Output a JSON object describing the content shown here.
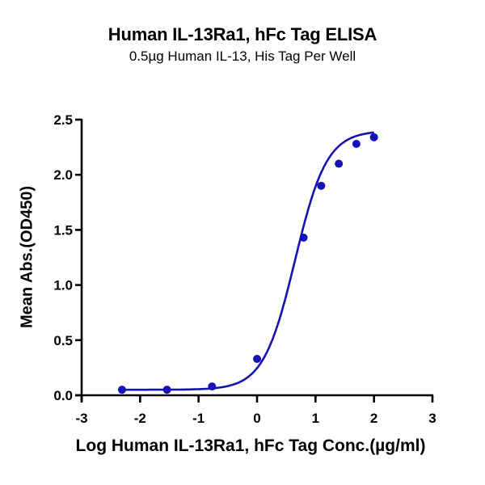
{
  "title": "Human IL-13Ra1, hFc Tag ELISA",
  "subtitle": "0.5µg Human IL-13, His Tag Per Well",
  "colors": {
    "series": "#1414b4",
    "axis": "#000000"
  },
  "chart_data": {
    "type": "scatter",
    "title": "Human IL-13Ra1, hFc Tag ELISA",
    "subtitle": "0.5µg Human IL-13, His Tag Per Well",
    "xlabel": "Log Human IL-13Ra1, hFc Tag Conc.(µg/ml)",
    "ylabel": "Mean Abs.(OD450)",
    "xlim": [
      -3,
      3
    ],
    "ylim": [
      0,
      2.5
    ],
    "xticks": [
      -3,
      -2,
      -1,
      0,
      1,
      2,
      3
    ],
    "yticks": [
      0.0,
      0.5,
      1.0,
      1.5,
      2.0,
      2.5
    ],
    "xtick_labels": [
      "-3",
      "-2",
      "-1",
      "0",
      "1",
      "2",
      "3"
    ],
    "ytick_labels": [
      "0.0",
      "0.5",
      "1.0",
      "1.5",
      "2.0",
      "2.5"
    ],
    "grid": false,
    "legend": null,
    "fit": "four-parameter logistic (sigmoidal) curve through points",
    "series": [
      {
        "name": "Human IL-13Ra1, hFc Tag",
        "x": [
          -2.31,
          -1.54,
          -0.77,
          0.0,
          0.796,
          1.097,
          1.398,
          1.699,
          2.0
        ],
        "y": [
          0.05,
          0.05,
          0.08,
          0.33,
          1.43,
          1.9,
          2.1,
          2.28,
          2.34
        ]
      }
    ],
    "fit_params": {
      "bottom": 0.05,
      "top": 2.4,
      "logEC50": 0.65,
      "hill": 1.6
    }
  }
}
